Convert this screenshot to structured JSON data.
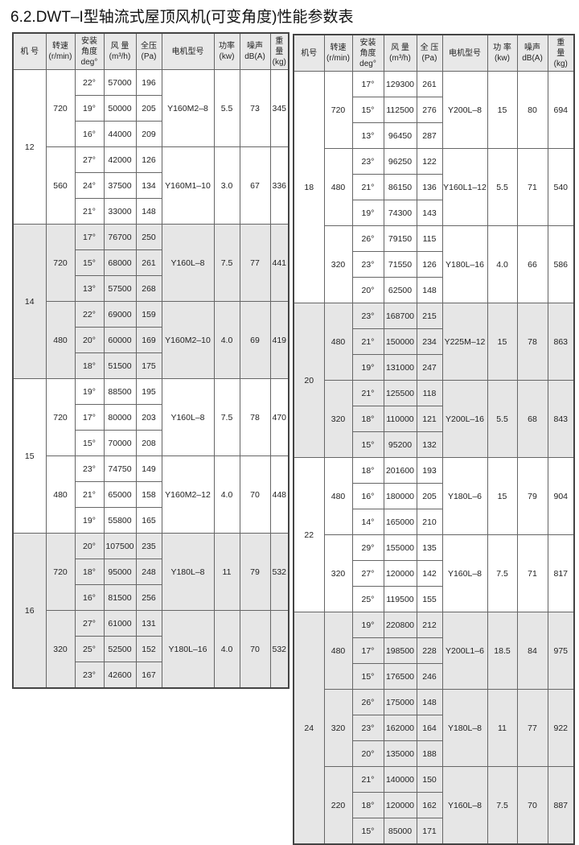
{
  "title": "6.2.DWT–I型轴流式屋顶风机(可变角度)性能参数表",
  "tables": [
    {
      "headers": [
        "机 号",
        "转速\n(r/min)",
        "安装\n角度\ndeg°",
        "风 量\n(m³/h)",
        "全压\n(Pa)",
        "电机型号",
        "功率\n(kw)",
        "噪声\ndB(A)",
        "重\n量\n(kg)"
      ],
      "groups": [
        {
          "machine": "12",
          "speeds": [
            {
              "rpm": "720",
              "motor": "Y160M2–8",
              "power": "5.5",
              "noise": "73",
              "weight": "345",
              "rows": [
                [
                  "22°",
                  "57000",
                  "196"
                ],
                [
                  "19°",
                  "50000",
                  "205"
                ],
                [
                  "16°",
                  "44000",
                  "209"
                ]
              ]
            },
            {
              "rpm": "560",
              "motor": "Y160M1–10",
              "power": "3.0",
              "noise": "67",
              "weight": "336",
              "rows": [
                [
                  "27°",
                  "42000",
                  "126"
                ],
                [
                  "24°",
                  "37500",
                  "134"
                ],
                [
                  "21°",
                  "33000",
                  "148"
                ]
              ]
            }
          ]
        },
        {
          "machine": "14",
          "speeds": [
            {
              "rpm": "720",
              "motor": "Y160L–8",
              "power": "7.5",
              "noise": "77",
              "weight": "441",
              "rows": [
                [
                  "17°",
                  "76700",
                  "250"
                ],
                [
                  "15°",
                  "68000",
                  "261"
                ],
                [
                  "13°",
                  "57500",
                  "268"
                ]
              ]
            },
            {
              "rpm": "480",
              "motor": "Y160M2–10",
              "power": "4.0",
              "noise": "69",
              "weight": "419",
              "rows": [
                [
                  "22°",
                  "69000",
                  "159"
                ],
                [
                  "20°",
                  "60000",
                  "169"
                ],
                [
                  "18°",
                  "51500",
                  "175"
                ]
              ]
            }
          ]
        },
        {
          "machine": "15",
          "speeds": [
            {
              "rpm": "720",
              "motor": "Y160L–8",
              "power": "7.5",
              "noise": "78",
              "weight": "470",
              "rows": [
                [
                  "19°",
                  "88500",
                  "195"
                ],
                [
                  "17°",
                  "80000",
                  "203"
                ],
                [
                  "15°",
                  "70000",
                  "208"
                ]
              ]
            },
            {
              "rpm": "480",
              "motor": "Y160M2–12",
              "power": "4.0",
              "noise": "70",
              "weight": "448",
              "rows": [
                [
                  "23°",
                  "74750",
                  "149"
                ],
                [
                  "21°",
                  "65000",
                  "158"
                ],
                [
                  "19°",
                  "55800",
                  "165"
                ]
              ]
            }
          ]
        },
        {
          "machine": "16",
          "speeds": [
            {
              "rpm": "720",
              "motor": "Y180L–8",
              "power": "11",
              "noise": "79",
              "weight": "532",
              "rows": [
                [
                  "20°",
                  "107500",
                  "235"
                ],
                [
                  "18°",
                  "95000",
                  "248"
                ],
                [
                  "16°",
                  "81500",
                  "256"
                ]
              ]
            },
            {
              "rpm": "320",
              "motor": "Y180L–16",
              "power": "4.0",
              "noise": "70",
              "weight": "532",
              "rows": [
                [
                  "27°",
                  "61000",
                  "131"
                ],
                [
                  "25°",
                  "52500",
                  "152"
                ],
                [
                  "23°",
                  "42600",
                  "167"
                ]
              ]
            }
          ]
        }
      ]
    },
    {
      "headers": [
        "机号",
        "转速\n(r/min)",
        "安装\n角度\ndeg°",
        "风 量\n(m³/h)",
        "全 压\n(Pa)",
        "电机型号",
        "功 率\n(kw)",
        "噪声\ndB(A)",
        "重\n量\n(kg)"
      ],
      "groups": [
        {
          "machine": "18",
          "speeds": [
            {
              "rpm": "720",
              "motor": "Y200L–8",
              "power": "15",
              "noise": "80",
              "weight": "694",
              "rows": [
                [
                  "17°",
                  "129300",
                  "261"
                ],
                [
                  "15°",
                  "112500",
                  "276"
                ],
                [
                  "13°",
                  "96450",
                  "287"
                ]
              ]
            },
            {
              "rpm": "480",
              "motor": "Y160L1–12",
              "power": "5.5",
              "noise": "71",
              "weight": "540",
              "rows": [
                [
                  "23°",
                  "96250",
                  "122"
                ],
                [
                  "21°",
                  "86150",
                  "136"
                ],
                [
                  "19°",
                  "74300",
                  "143"
                ]
              ]
            },
            {
              "rpm": "320",
              "motor": "Y180L–16",
              "power": "4.0",
              "noise": "66",
              "weight": "586",
              "rows": [
                [
                  "26°",
                  "79150",
                  "115"
                ],
                [
                  "23°",
                  "71550",
                  "126"
                ],
                [
                  "20°",
                  "62500",
                  "148"
                ]
              ]
            }
          ]
        },
        {
          "machine": "20",
          "speeds": [
            {
              "rpm": "480",
              "motor": "Y225M–12",
              "power": "15",
              "noise": "78",
              "weight": "863",
              "rows": [
                [
                  "23°",
                  "168700",
                  "215"
                ],
                [
                  "21°",
                  "150000",
                  "234"
                ],
                [
                  "19°",
                  "131000",
                  "247"
                ]
              ]
            },
            {
              "rpm": "320",
              "motor": "Y200L–16",
              "power": "5.5",
              "noise": "68",
              "weight": "843",
              "rows": [
                [
                  "21°",
                  "125500",
                  "118"
                ],
                [
                  "18°",
                  "110000",
                  "121"
                ],
                [
                  "15°",
                  "95200",
                  "132"
                ]
              ]
            }
          ]
        },
        {
          "machine": "22",
          "speeds": [
            {
              "rpm": "480",
              "motor": "Y180L–6",
              "power": "15",
              "noise": "79",
              "weight": "904",
              "rows": [
                [
                  "18°",
                  "201600",
                  "193"
                ],
                [
                  "16°",
                  "180000",
                  "205"
                ],
                [
                  "14°",
                  "165000",
                  "210"
                ]
              ]
            },
            {
              "rpm": "320",
              "motor": "Y160L–8",
              "power": "7.5",
              "noise": "71",
              "weight": "817",
              "rows": [
                [
                  "29°",
                  "155000",
                  "135"
                ],
                [
                  "27°",
                  "120000",
                  "142"
                ],
                [
                  "25°",
                  "119500",
                  "155"
                ]
              ]
            }
          ]
        },
        {
          "machine": "24",
          "speeds": [
            {
              "rpm": "480",
              "motor": "Y200L1–6",
              "power": "18.5",
              "noise": "84",
              "weight": "975",
              "rows": [
                [
                  "19°",
                  "220800",
                  "212"
                ],
                [
                  "17°",
                  "198500",
                  "228"
                ],
                [
                  "15°",
                  "176500",
                  "246"
                ]
              ]
            },
            {
              "rpm": "320",
              "motor": "Y180L–8",
              "power": "11",
              "noise": "77",
              "weight": "922",
              "rows": [
                [
                  "26°",
                  "175000",
                  "148"
                ],
                [
                  "23°",
                  "162000",
                  "164"
                ],
                [
                  "20°",
                  "135000",
                  "188"
                ]
              ]
            },
            {
              "rpm": "220",
              "motor": "Y160L–8",
              "power": "7.5",
              "noise": "70",
              "weight": "887",
              "rows": [
                [
                  "21°",
                  "140000",
                  "150"
                ],
                [
                  "18°",
                  "120000",
                  "162"
                ],
                [
                  "15°",
                  "85000",
                  "171"
                ]
              ]
            }
          ]
        }
      ]
    }
  ]
}
